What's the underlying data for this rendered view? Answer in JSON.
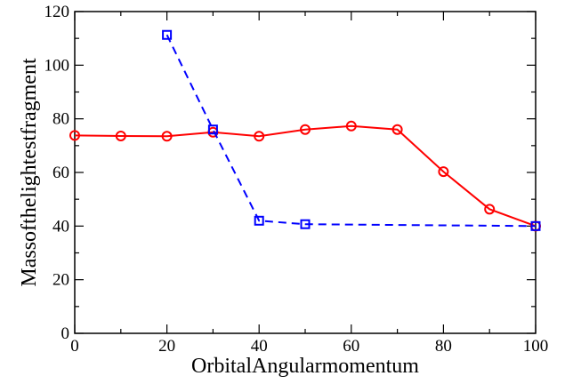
{
  "chart_data": {
    "type": "line",
    "xlabel": "OrbitalAngularmomentum",
    "ylabel": "Massofthelightestfragment",
    "xlim": [
      0,
      100
    ],
    "ylim": [
      0,
      120
    ],
    "x_ticks": [
      "0",
      "20",
      "40",
      "60",
      "80",
      "100"
    ],
    "y_ticks": [
      "0",
      "20",
      "40",
      "60",
      "80",
      "100",
      "120"
    ],
    "grid": false,
    "legend": "none",
    "series": [
      {
        "color": "#ff0000",
        "marker": "circle",
        "line_style": "solid",
        "points": [
          {
            "x": 0,
            "y": 73.8
          },
          {
            "x": 10,
            "y": 73.6
          },
          {
            "x": 20,
            "y": 73.5
          },
          {
            "x": 30,
            "y": 75.0
          },
          {
            "x": 40,
            "y": 73.5
          },
          {
            "x": 50,
            "y": 76.0
          },
          {
            "x": 60,
            "y": 77.3
          },
          {
            "x": 70,
            "y": 76.0
          },
          {
            "x": 80,
            "y": 60.3
          },
          {
            "x": 90,
            "y": 46.3
          },
          {
            "x": 100,
            "y": 40.0
          }
        ]
      },
      {
        "color": "#0000ff",
        "marker": "square",
        "line_style": "dashed",
        "points": [
          {
            "x": 20,
            "y": 111.3
          },
          {
            "x": 30,
            "y": 76.0
          },
          {
            "x": 40,
            "y": 42.0
          },
          {
            "x": 50,
            "y": 40.7
          },
          {
            "x": 100,
            "y": 40.0
          }
        ]
      }
    ]
  }
}
